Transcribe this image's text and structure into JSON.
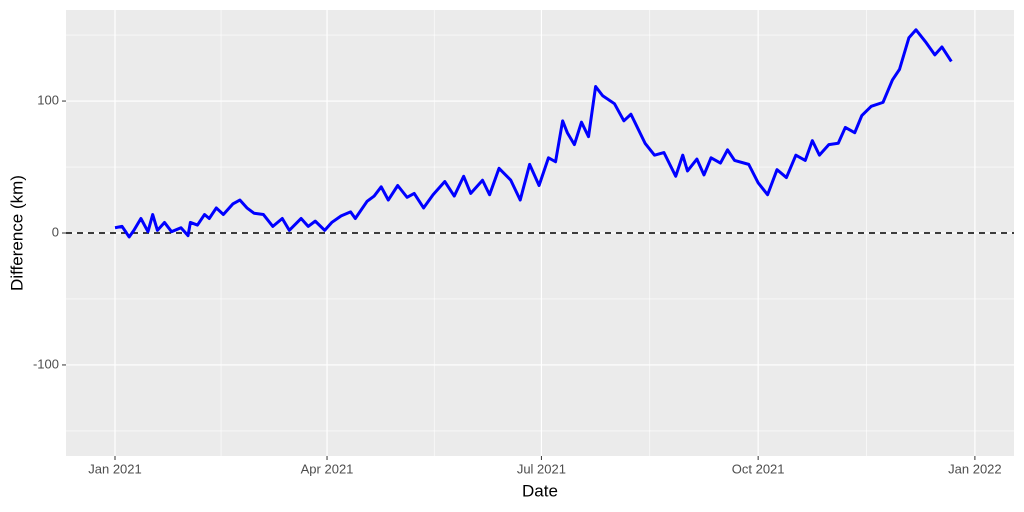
{
  "chart_data": {
    "type": "line",
    "x_label": "Date",
    "y_label": "Difference (km)",
    "x": [
      0,
      3,
      6,
      8,
      11,
      14,
      16,
      18,
      21,
      24,
      28,
      31,
      32,
      35,
      38,
      40,
      43,
      46,
      50,
      53,
      56,
      59,
      63,
      67,
      71,
      74,
      79,
      82,
      85,
      89,
      92,
      96,
      100,
      102,
      107,
      110,
      113,
      116,
      120,
      124,
      127,
      131,
      135,
      140,
      144,
      148,
      151,
      156,
      159,
      163,
      168,
      172,
      176,
      180,
      184,
      187,
      190,
      192,
      195,
      198,
      201,
      204,
      207,
      212,
      216,
      219,
      225,
      229,
      233,
      238,
      241,
      243,
      247,
      250,
      253,
      257,
      260,
      263,
      269,
      273,
      277,
      281,
      285,
      289,
      293,
      296,
      299,
      303,
      307,
      310,
      314,
      317,
      321,
      326,
      330,
      333,
      337,
      340,
      344,
      348,
      351,
      355
    ],
    "series": [
      {
        "color": "#0000ff",
        "values": [
          4,
          5,
          -3,
          2,
          11,
          1,
          14,
          2,
          8,
          1,
          4,
          -2,
          8,
          6,
          14,
          11,
          19,
          14,
          22,
          25,
          19,
          15,
          14,
          5,
          11,
          2,
          11,
          5,
          9,
          2,
          8,
          13,
          16,
          11,
          24,
          28,
          35,
          25,
          36,
          27,
          30,
          19,
          29,
          39,
          28,
          43,
          30,
          40,
          29,
          49,
          40,
          25,
          52,
          36,
          57,
          54,
          85,
          76,
          67,
          84,
          73,
          111,
          104,
          98,
          85,
          90,
          68,
          59,
          61,
          43,
          59,
          47,
          56,
          44,
          57,
          53,
          63,
          55,
          52,
          38,
          29,
          48,
          42,
          59,
          55,
          70,
          59,
          67,
          68,
          80,
          76,
          89,
          96,
          99,
          116,
          124,
          148,
          154,
          145,
          135,
          141,
          130
        ]
      }
    ],
    "xlim": [
      -20.8,
      381.6
    ],
    "xticks": [
      {
        "value": 0,
        "label": "Jan 2021"
      },
      {
        "value": 90,
        "label": "Apr 2021"
      },
      {
        "value": 181,
        "label": "Jul 2021"
      },
      {
        "value": 273,
        "label": "Oct 2021"
      },
      {
        "value": 365,
        "label": "Jan 2022"
      }
    ],
    "ylim": [
      -169,
      169
    ],
    "yticks": [
      -100,
      0,
      100
    ],
    "hline": 0,
    "grid": true
  }
}
